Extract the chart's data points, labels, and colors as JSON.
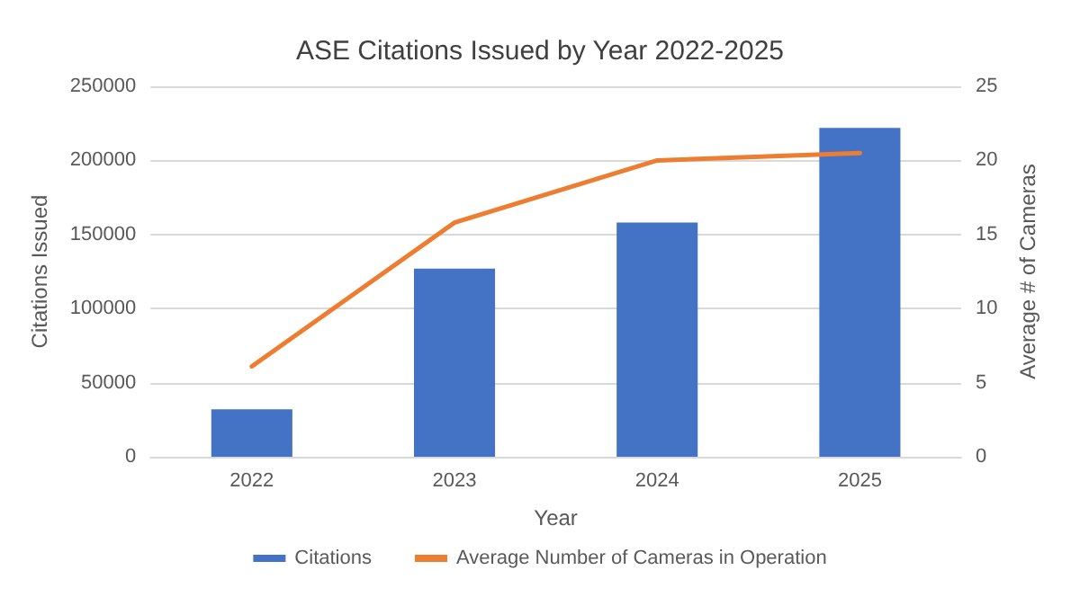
{
  "chart_data": {
    "type": "bar",
    "title": "ASE Citations Issued by Year 2022-2025",
    "xlabel": "Year",
    "ylabel": "Citations Issued",
    "y2label": "Average # of Cameras",
    "categories": [
      "2022",
      "2023",
      "2024",
      "2025"
    ],
    "series": [
      {
        "name": "Citations",
        "color": "#4472c4",
        "values": [
          32000,
          127000,
          158000,
          222000
        ]
      },
      {
        "name": "Average Number of Cameras in Operation",
        "type": "line",
        "axis": "y2",
        "color": "#ed7d31",
        "values": [
          6.1,
          15.8,
          20.0,
          20.5
        ]
      }
    ],
    "ylim": [
      0,
      250000
    ],
    "yticks": [
      0,
      50000,
      100000,
      150000,
      200000,
      250000
    ],
    "y2lim": [
      0,
      25
    ],
    "y2ticks": [
      0,
      5,
      10,
      15,
      20,
      25
    ],
    "grid": "y",
    "legend": "bottom",
    "marker": "none"
  }
}
